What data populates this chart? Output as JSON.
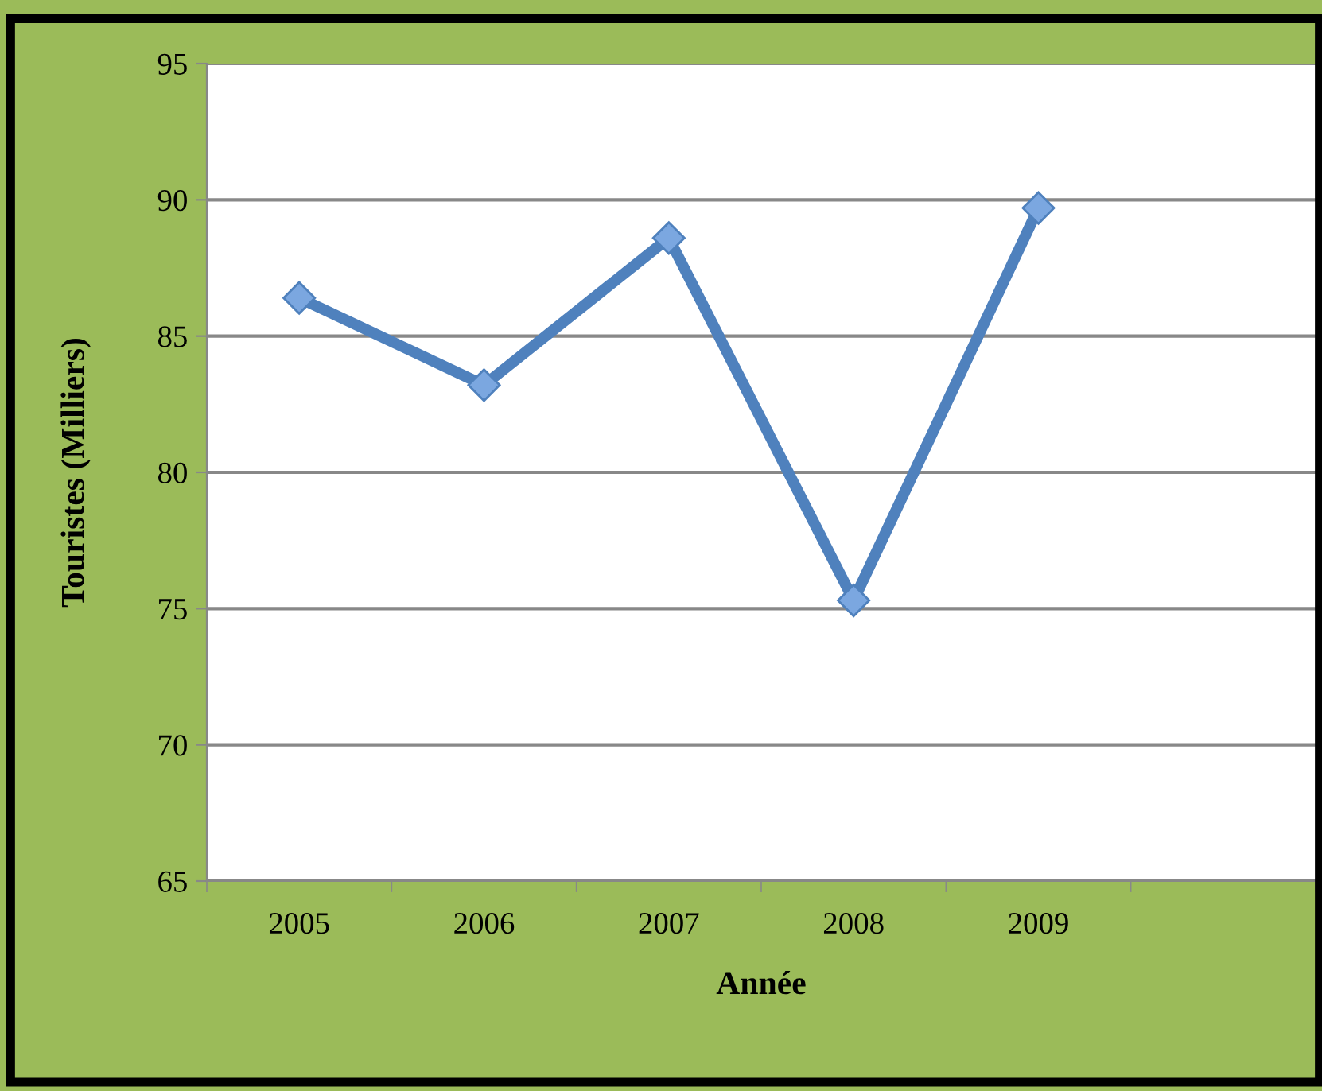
{
  "chart_data": {
    "type": "line",
    "xlabel": "Année",
    "ylabel": "Touristes (Milliers)",
    "categories": [
      "2005",
      "2006",
      "2007",
      "2008",
      "2009",
      null
    ],
    "series": [
      {
        "color": "#4f81bd",
        "values": [
          86.4,
          83.2,
          88.6,
          75.3,
          89.7,
          null
        ]
      }
    ],
    "ylim": [
      65,
      95
    ],
    "yticks": [
      65,
      70,
      75,
      80,
      85,
      90,
      95
    ],
    "grid": "y",
    "marker": "diamond",
    "line_style": "solid"
  }
}
